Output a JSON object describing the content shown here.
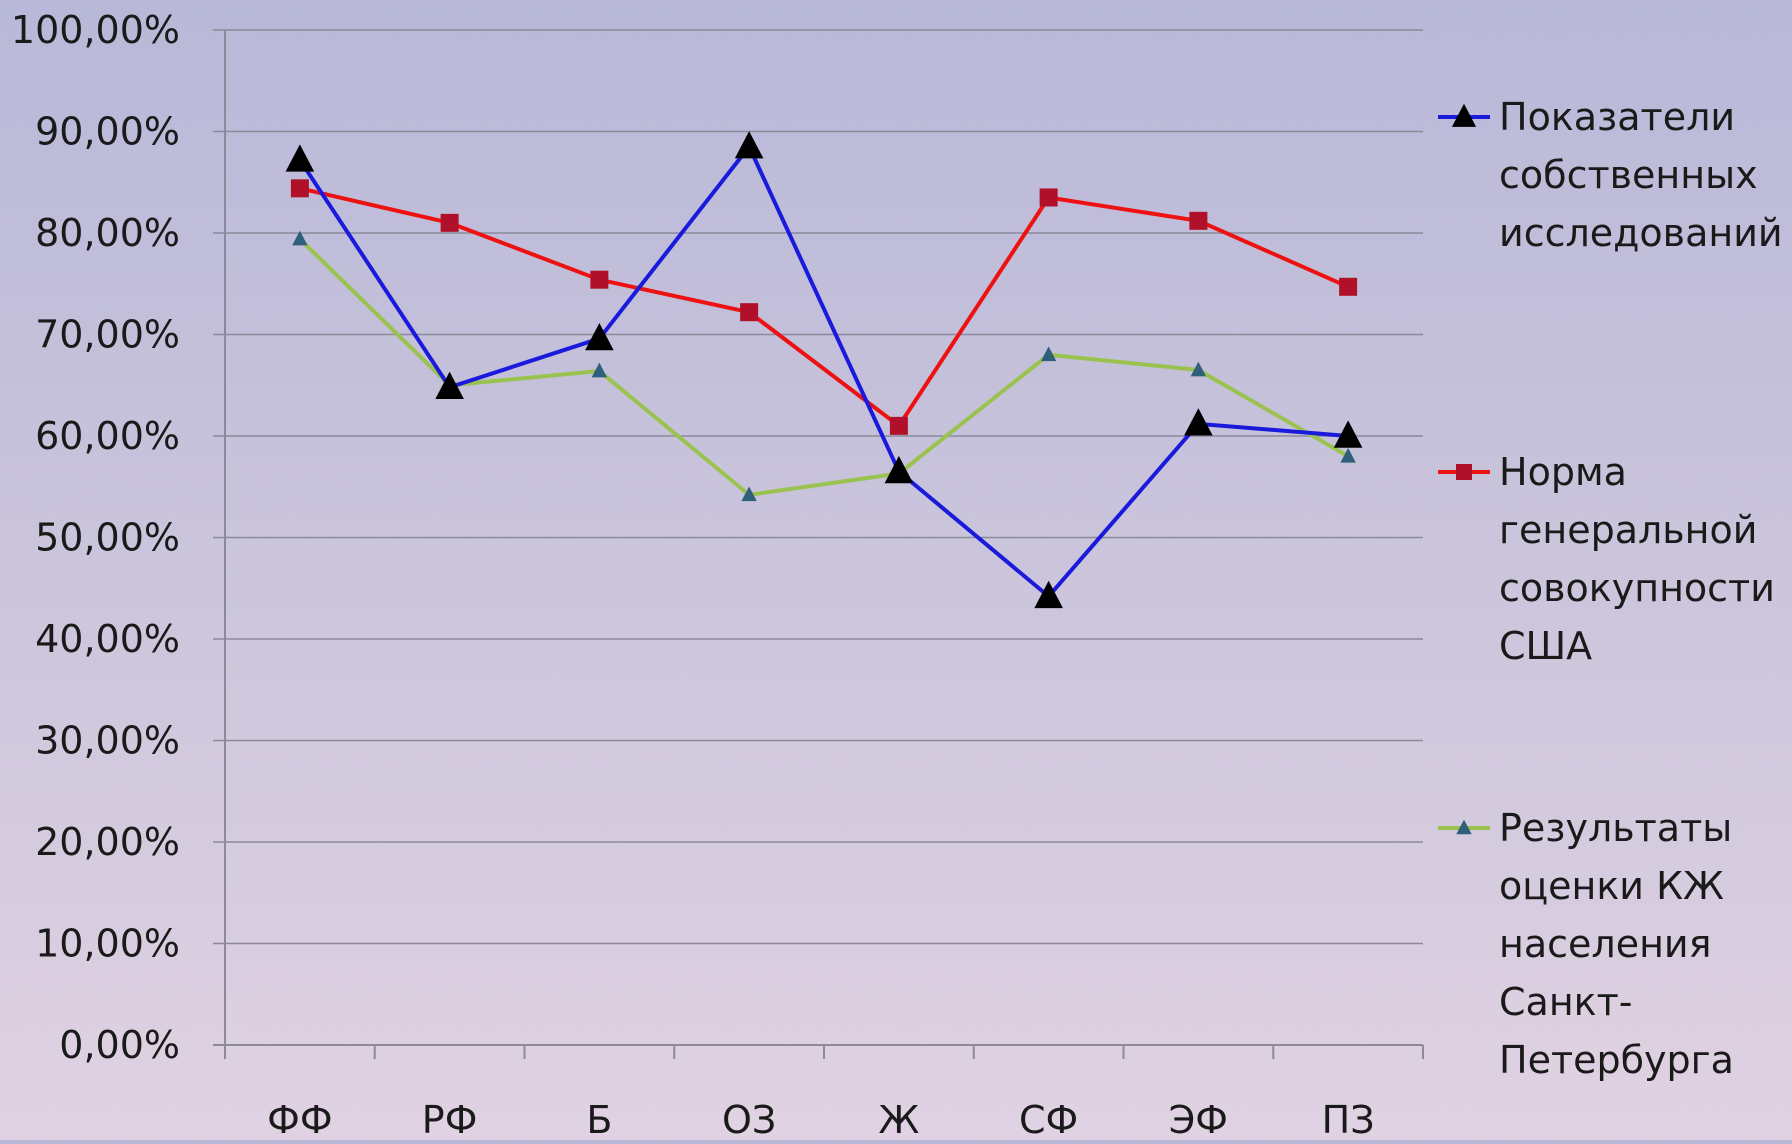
{
  "chart_data": {
    "type": "line",
    "title": "",
    "xlabel": "",
    "ylabel": "",
    "categories": [
      "ФФ",
      "РФ",
      "Б",
      "ОЗ",
      "Ж",
      "СФ",
      "ЭФ",
      "ПЗ"
    ],
    "ylim": [
      0,
      100
    ],
    "ytick_values": [
      0,
      10,
      20,
      30,
      40,
      50,
      60,
      70,
      80,
      90,
      100
    ],
    "ytick_labels": [
      "0,00%",
      "10,00%",
      "20,00%",
      "30,00%",
      "40,00%",
      "50,00%",
      "60,00%",
      "70,00%",
      "80,00%",
      "90,00%",
      "100,00%"
    ],
    "grid": true,
    "legend_position": "right",
    "series": [
      {
        "name": "Показатели собственных исследований",
        "legend_lines": [
          "Показатели",
          "собственных",
          "исследований"
        ],
        "color": "#1a1adc",
        "marker": "triangle",
        "marker_color": "#000000",
        "values": [
          87.2,
          64.8,
          69.6,
          88.5,
          56.5,
          44.2,
          61.2,
          60.0
        ]
      },
      {
        "name": "Норма генеральной совокупности США",
        "legend_lines": [
          "Норма",
          "генеральной",
          "совокупности",
          "США"
        ],
        "color": "#ee1111",
        "marker": "square",
        "marker_color": "#b0102a",
        "values": [
          84.4,
          81.0,
          75.4,
          72.2,
          61.0,
          83.5,
          81.2,
          74.7
        ]
      },
      {
        "name": "Результаты оценки КЖ населения Санкт-Петербурга",
        "legend_lines": [
          "Результаты",
          "оценки КЖ",
          "населения",
          "Санкт-",
          "Петербурга"
        ],
        "color": "#9ac24e",
        "marker": "triangle",
        "marker_color": "#2f5f7a",
        "values": [
          79.4,
          65.0,
          66.4,
          54.2,
          56.3,
          68.0,
          66.5,
          58.0
        ]
      }
    ]
  }
}
